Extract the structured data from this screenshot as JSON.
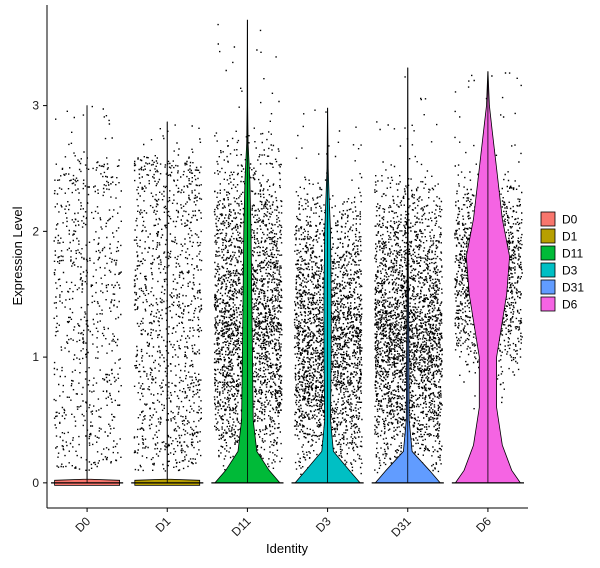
{
  "chart_data": {
    "type": "violin",
    "title": "",
    "xlabel": "Identity",
    "ylabel": "Expression Level",
    "ylim": [
      -0.2,
      3.8
    ],
    "yticks": [
      0,
      1,
      2,
      3
    ],
    "grid": false,
    "legend_position": "right",
    "categories": [
      "D0",
      "D1",
      "D11",
      "D3",
      "D31",
      "D6"
    ],
    "series": [
      {
        "name": "D0",
        "color": "#F8766D",
        "max": 3.0,
        "n_jitter": 700,
        "jitter_range": [
          0.1,
          2.6
        ],
        "zero_width": 0.45,
        "profile": []
      },
      {
        "name": "D1",
        "color": "#B79F00",
        "max": 2.87,
        "n_jitter": 1100,
        "jitter_range": [
          0.1,
          2.6
        ],
        "zero_width": 0.45,
        "profile": []
      },
      {
        "name": "D11",
        "color": "#00BA38",
        "max": 3.68,
        "n_jitter": 2600,
        "jitter_range": [
          0.05,
          2.9
        ],
        "zero_width": 0.45,
        "profile": [
          [
            0,
            0.45
          ],
          [
            0.1,
            0.3
          ],
          [
            0.25,
            0.13
          ],
          [
            0.5,
            0.08
          ],
          [
            1.0,
            0.07
          ],
          [
            1.5,
            0.06
          ],
          [
            2.0,
            0.05
          ],
          [
            2.4,
            0.035
          ],
          [
            2.7,
            0.01
          ],
          [
            3.0,
            0.004
          ],
          [
            3.68,
            0.001
          ]
        ]
      },
      {
        "name": "D3",
        "color": "#00BFC4",
        "max": 2.98,
        "n_jitter": 2500,
        "jitter_range": [
          0.05,
          2.5
        ],
        "zero_width": 0.45,
        "profile": [
          [
            0,
            0.45
          ],
          [
            0.1,
            0.3
          ],
          [
            0.25,
            0.08
          ],
          [
            0.5,
            0.04
          ],
          [
            1.0,
            0.05
          ],
          [
            1.5,
            0.05
          ],
          [
            2.0,
            0.04
          ],
          [
            2.3,
            0.02
          ],
          [
            2.5,
            0.008
          ],
          [
            2.98,
            0.001
          ]
        ]
      },
      {
        "name": "D31",
        "color": "#619CFF",
        "max": 3.3,
        "n_jitter": 2800,
        "jitter_range": [
          0.05,
          2.6
        ],
        "zero_width": 0.45,
        "profile": [
          [
            0,
            0.45
          ],
          [
            0.1,
            0.3
          ],
          [
            0.25,
            0.06
          ],
          [
            0.5,
            0.02
          ],
          [
            1.0,
            0.018
          ],
          [
            1.5,
            0.01
          ],
          [
            2.0,
            0.005
          ],
          [
            2.5,
            0.003
          ],
          [
            3.3,
            0.001
          ]
        ]
      },
      {
        "name": "D6",
        "color": "#F564E3",
        "max": 3.27,
        "n_jitter": 1400,
        "jitter_range": [
          0.05,
          2.9
        ],
        "zero_width": 0.45,
        "profile": [
          [
            0,
            0.45
          ],
          [
            0.1,
            0.33
          ],
          [
            0.3,
            0.2
          ],
          [
            0.6,
            0.12
          ],
          [
            1.0,
            0.12
          ],
          [
            1.5,
            0.26
          ],
          [
            1.8,
            0.3
          ],
          [
            2.1,
            0.2
          ],
          [
            2.5,
            0.12
          ],
          [
            2.8,
            0.06
          ],
          [
            3.0,
            0.02
          ],
          [
            3.27,
            0.001
          ]
        ]
      }
    ]
  }
}
